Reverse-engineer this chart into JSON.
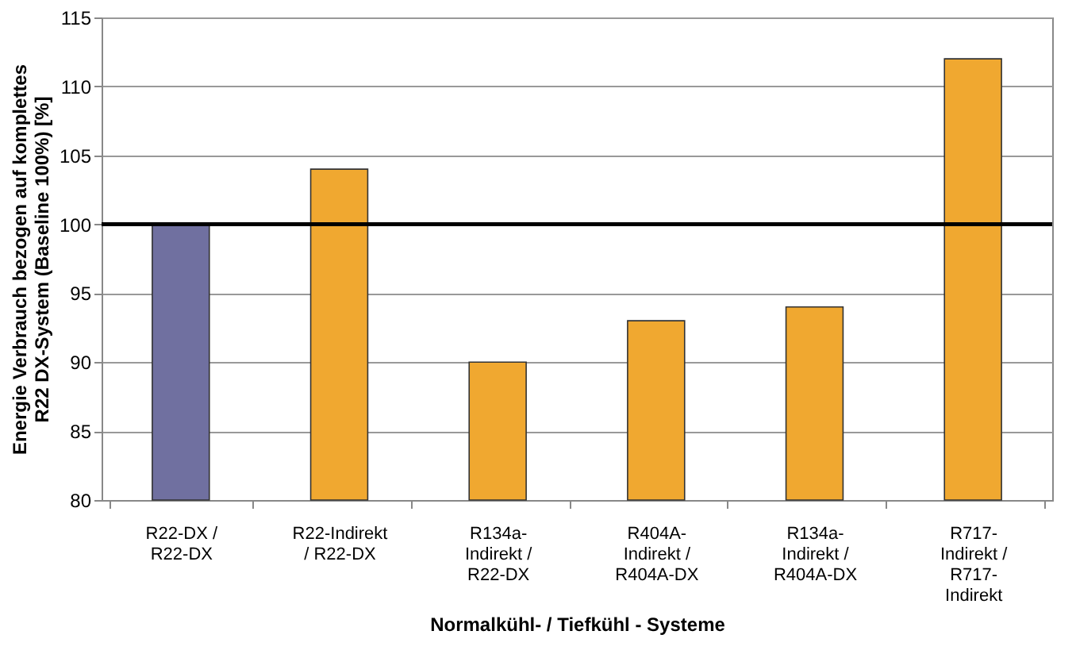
{
  "chart_data": {
    "type": "bar",
    "xlabel": "Normalkühl- / Tiefkühl - Systeme",
    "ylabel": "Energie Verbrauch bezogen auf komplettes\nR22 DX-System (Baseline 100%) [%]",
    "categories": [
      "R22-DX /\nR22-DX",
      "R22-Indirekt\n/ R22-DX",
      "R134a-\nIndirekt /\nR22-DX",
      "R404A-\nIndirekt /\nR404A-DX",
      "R134a-\nIndirekt /\nR404A-DX",
      "R717-\nIndirekt /\nR717-\nIndirekt"
    ],
    "values": [
      100,
      104,
      90,
      93,
      94,
      112
    ],
    "colors": [
      "#7070a0",
      "#f0a830",
      "#f0a830",
      "#f0a830",
      "#f0a830",
      "#f0a830"
    ],
    "ylim": [
      80,
      115
    ],
    "yticks": [
      80,
      85,
      90,
      95,
      100,
      105,
      110,
      115
    ],
    "grid": "y",
    "ref_lines": [
      {
        "axis": "y",
        "value": 100,
        "color": "#000000"
      }
    ]
  }
}
